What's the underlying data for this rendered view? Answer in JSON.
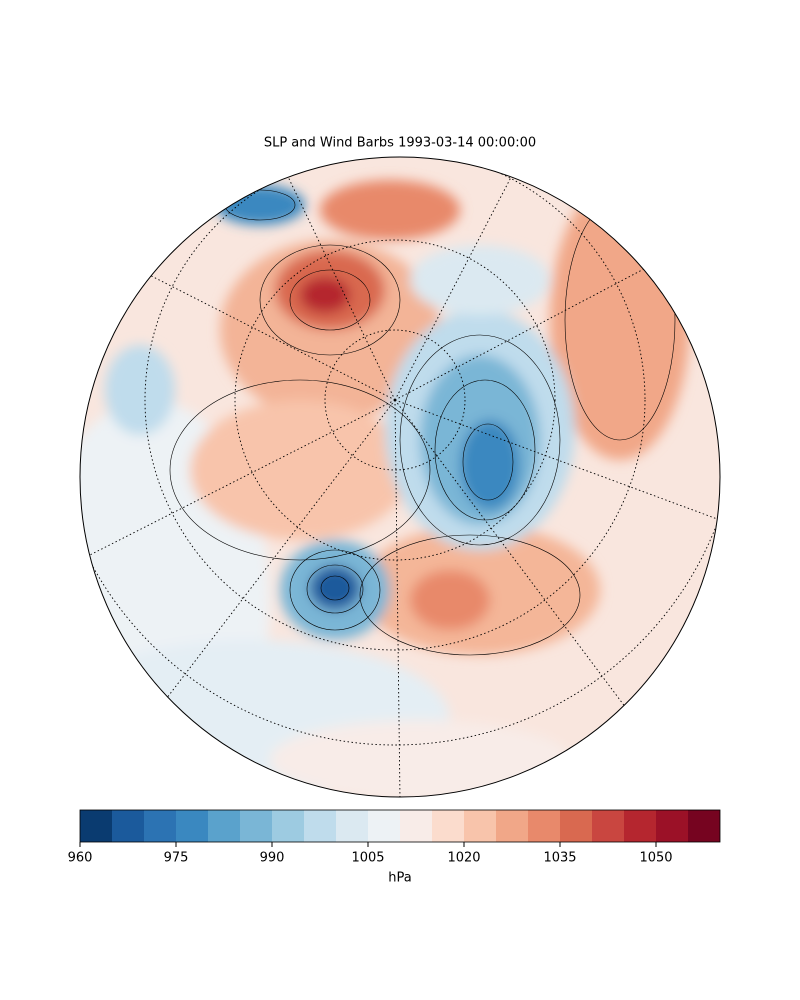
{
  "chart_data": {
    "type": "map",
    "title": "SLP and Wind Barbs 1993-03-14 00:00:00",
    "colorbar": {
      "label": "hPa",
      "levels": [
        960,
        965,
        970,
        975,
        980,
        985,
        990,
        995,
        1000,
        1005,
        1010,
        1015,
        1020,
        1025,
        1030,
        1035,
        1040,
        1045,
        1050,
        1055,
        1060
      ],
      "colors": [
        "#0a3b70",
        "#1b5a9c",
        "#2c73b3",
        "#3a88c0",
        "#5aa2cc",
        "#7ab6d6",
        "#9dcbe1",
        "#bfdcec",
        "#dbe9f1",
        "#edf2f5",
        "#f8ece8",
        "#fbdccd",
        "#f8c4ab",
        "#f1a788",
        "#e8896b",
        "#d96950",
        "#c94640",
        "#b5262f",
        "#9b1127",
        "#760420"
      ],
      "ticks": [
        960,
        975,
        990,
        1005,
        1020,
        1035,
        1050
      ]
    }
  }
}
